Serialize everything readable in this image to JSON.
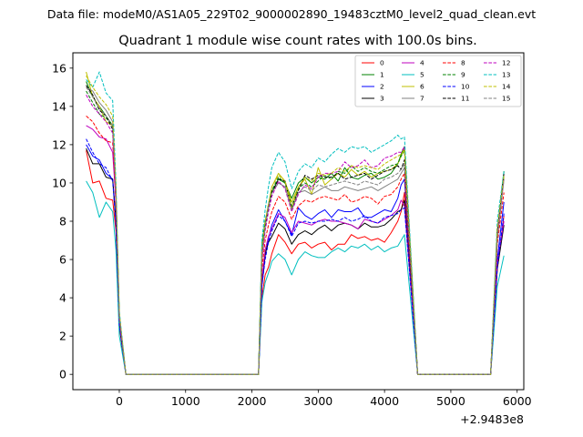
{
  "figure": {
    "suptitle": "Data file: modeM0/AS1A05_229T02_9000002890_19483cztM0_level2_quad_clean.evt"
  },
  "chart_data": {
    "type": "line",
    "title": "Quadrant 1 module wise count rates with 100.0s bins.",
    "xlabel": "",
    "ylabel": "",
    "x_offset_label": "+2.9483e8",
    "xlim": [
      -700,
      6100
    ],
    "ylim": [
      -0.8,
      16.8
    ],
    "x_ticks": [
      0,
      1000,
      2000,
      3000,
      4000,
      5000,
      6000
    ],
    "x_tick_labels": [
      "0",
      "1000",
      "2000",
      "3000",
      "4000",
      "5000",
      "6000"
    ],
    "y_ticks": [
      0,
      2,
      4,
      6,
      8,
      10,
      12,
      14,
      16
    ],
    "y_tick_labels": [
      "0",
      "2",
      "4",
      "6",
      "8",
      "10",
      "12",
      "14",
      "16"
    ],
    "grid": false,
    "legend_placement": "top-right",
    "legend_columns": 4,
    "x": [
      -500,
      -400,
      -300,
      -200,
      -100,
      -50,
      0,
      100,
      2000,
      2100,
      2150,
      2200,
      2250,
      2300,
      2400,
      2500,
      2600,
      2700,
      2800,
      2900,
      3000,
      3100,
      3200,
      3300,
      3400,
      3500,
      3600,
      3700,
      3800,
      3900,
      4000,
      4100,
      4200,
      4250,
      4300,
      4500,
      5600,
      5700,
      5800
    ],
    "series": [
      {
        "name": "0",
        "color": "#ff0000",
        "dash": "solid",
        "values": [
          11.7,
          10.0,
          10.1,
          9.2,
          9.1,
          7.5,
          2.5,
          0,
          0,
          0,
          4.0,
          5.2,
          5.6,
          6.3,
          7.3,
          6.9,
          6.3,
          6.8,
          6.9,
          6.6,
          6.8,
          6.9,
          6.5,
          6.8,
          6.8,
          7.3,
          7.1,
          7.2,
          7.0,
          7.1,
          6.9,
          7.4,
          8.0,
          8.5,
          9.5,
          0,
          0,
          5.5,
          8.3
        ]
      },
      {
        "name": "1",
        "color": "#008000",
        "dash": "solid",
        "values": [
          15.3,
          14.5,
          14.0,
          13.5,
          13.0,
          9.0,
          3.0,
          0,
          0,
          0,
          6.8,
          8.0,
          8.8,
          9.5,
          10.2,
          10.0,
          9.2,
          10.0,
          10.3,
          10.0,
          10.3,
          10.2,
          10.5,
          10.1,
          10.8,
          10.3,
          10.2,
          10.4,
          10.5,
          10.2,
          10.3,
          10.5,
          11.0,
          11.5,
          11.9,
          0,
          0,
          7.2,
          10.6
        ]
      },
      {
        "name": "2",
        "color": "#0000ff",
        "dash": "solid",
        "values": [
          12.0,
          11.4,
          11.2,
          10.5,
          10.2,
          8.0,
          2.7,
          0,
          0,
          0,
          4.6,
          6.2,
          7.1,
          7.8,
          8.6,
          8.0,
          7.3,
          8.7,
          8.3,
          8.1,
          8.4,
          8.6,
          8.2,
          8.6,
          8.5,
          8.5,
          8.7,
          8.2,
          8.2,
          8.4,
          8.6,
          8.5,
          9.2,
          9.9,
          10.2,
          0,
          0,
          6.0,
          9.0
        ]
      },
      {
        "name": "3",
        "color": "#000000",
        "dash": "solid",
        "values": [
          11.8,
          11.0,
          11.0,
          10.3,
          10.2,
          8.0,
          2.6,
          0,
          0,
          0,
          4.8,
          6.3,
          6.9,
          7.2,
          7.9,
          7.6,
          6.8,
          7.3,
          7.5,
          7.3,
          7.6,
          7.8,
          7.5,
          7.8,
          7.9,
          7.8,
          7.6,
          7.9,
          7.7,
          7.7,
          7.8,
          8.1,
          8.5,
          8.6,
          9.1,
          0,
          0,
          5.5,
          7.8
        ]
      },
      {
        "name": "4",
        "color": "#bf00bf",
        "dash": "solid",
        "values": [
          13.0,
          12.8,
          12.4,
          12.3,
          11.6,
          9.0,
          3.0,
          0,
          0,
          0,
          5.0,
          6.5,
          7.2,
          7.6,
          8.4,
          8.2,
          7.4,
          8.0,
          7.9,
          7.8,
          8.0,
          8.1,
          8.0,
          8.0,
          7.9,
          7.8,
          7.6,
          8.1,
          8.0,
          7.9,
          8.1,
          8.3,
          8.6,
          9.1,
          8.8,
          0,
          0,
          5.8,
          8.0
        ]
      },
      {
        "name": "5",
        "color": "#00bfbf",
        "dash": "solid",
        "values": [
          10.1,
          9.5,
          8.2,
          9.0,
          8.5,
          6.5,
          2.0,
          0,
          0,
          0,
          3.8,
          4.8,
          5.3,
          5.9,
          6.3,
          6.0,
          5.2,
          6.0,
          6.4,
          6.2,
          6.1,
          6.1,
          6.4,
          6.6,
          6.4,
          6.7,
          6.6,
          6.8,
          6.5,
          6.7,
          6.4,
          6.6,
          6.7,
          7.0,
          7.3,
          0,
          0,
          4.6,
          6.2
        ]
      },
      {
        "name": "6",
        "color": "#bfbf00",
        "dash": "solid",
        "values": [
          15.8,
          14.5,
          14.0,
          13.2,
          13.0,
          9.5,
          3.1,
          0,
          0,
          0,
          6.5,
          7.8,
          8.8,
          9.8,
          10.5,
          10.1,
          9.0,
          9.8,
          10.2,
          9.4,
          10.8,
          9.9,
          10.2,
          10.5,
          10.3,
          10.7,
          10.4,
          10.6,
          10.3,
          10.5,
          10.6,
          10.7,
          11.0,
          11.4,
          11.8,
          0,
          0,
          7.5,
          10.3
        ]
      },
      {
        "name": "7",
        "color": "#808080",
        "dash": "solid",
        "values": [
          15.0,
          14.8,
          14.2,
          13.8,
          13.2,
          9.5,
          3.0,
          0,
          0,
          0,
          6.0,
          7.7,
          8.7,
          9.5,
          10.0,
          9.8,
          8.6,
          9.5,
          9.6,
          9.4,
          9.6,
          9.8,
          9.6,
          9.6,
          9.8,
          9.7,
          9.6,
          9.7,
          9.8,
          9.6,
          9.8,
          10.0,
          10.2,
          10.5,
          10.8,
          0,
          0,
          7.0,
          10.2
        ]
      },
      {
        "name": "8",
        "color": "#ff0000",
        "dash": "dashed",
        "values": [
          13.5,
          13.2,
          12.6,
          12.2,
          12.1,
          9.0,
          2.9,
          0,
          0,
          0,
          5.5,
          7.0,
          7.8,
          8.5,
          9.3,
          9.0,
          8.1,
          8.8,
          9.1,
          9.0,
          9.2,
          9.3,
          9.2,
          9.1,
          9.4,
          9.0,
          9.1,
          9.3,
          9.2,
          8.9,
          9.3,
          9.4,
          9.8,
          10.2,
          10.5,
          0,
          0,
          6.8,
          9.5
        ]
      },
      {
        "name": "9",
        "color": "#008000",
        "dash": "dashed",
        "values": [
          14.8,
          14.2,
          13.6,
          13.4,
          13.0,
          9.5,
          3.0,
          0,
          0,
          0,
          6.4,
          7.9,
          8.9,
          9.6,
          10.3,
          10.0,
          8.8,
          9.7,
          10.0,
          9.8,
          10.1,
          10.4,
          10.2,
          10.6,
          10.5,
          10.9,
          10.6,
          10.8,
          10.6,
          10.5,
          10.7,
          10.9,
          11.0,
          11.4,
          11.7,
          0,
          0,
          7.4,
          10.6
        ]
      },
      {
        "name": "10",
        "color": "#0000ff",
        "dash": "dashed",
        "values": [
          12.3,
          11.6,
          11.0,
          10.8,
          10.1,
          7.8,
          2.6,
          0,
          0,
          0,
          4.6,
          6.0,
          6.9,
          7.5,
          8.3,
          8.0,
          7.2,
          7.9,
          8.0,
          7.9,
          8.0,
          8.0,
          8.1,
          8.0,
          8.2,
          8.0,
          8.1,
          8.3,
          8.0,
          7.9,
          8.2,
          8.3,
          8.4,
          8.6,
          8.7,
          0,
          0,
          5.6,
          8.4
        ]
      },
      {
        "name": "11",
        "color": "#000000",
        "dash": "dashed",
        "values": [
          15.1,
          14.6,
          13.8,
          13.5,
          12.8,
          9.4,
          3.0,
          0,
          0,
          0,
          6.4,
          7.8,
          8.8,
          9.5,
          10.2,
          10.1,
          8.7,
          9.6,
          10.4,
          10.2,
          10.4,
          10.3,
          10.3,
          10.5,
          10.2,
          10.3,
          10.4,
          10.5,
          10.2,
          10.4,
          10.6,
          10.7,
          10.9,
          10.7,
          11.2,
          0,
          0,
          7.4,
          10.5
        ]
      },
      {
        "name": "12",
        "color": "#bf00bf",
        "dash": "dashed",
        "values": [
          14.6,
          14.0,
          13.6,
          13.2,
          12.6,
          9.0,
          2.9,
          0,
          0,
          0,
          6.0,
          7.5,
          8.5,
          9.3,
          10.1,
          9.7,
          8.5,
          9.4,
          9.9,
          9.7,
          10.3,
          10.5,
          10.5,
          10.6,
          11.1,
          10.8,
          10.9,
          11.2,
          10.8,
          10.9,
          11.3,
          11.4,
          11.6,
          11.6,
          11.9,
          0,
          0,
          7.3,
          10.4
        ]
      },
      {
        "name": "13",
        "color": "#00bfbf",
        "dash": "dashed",
        "values": [
          15.4,
          15.0,
          15.8,
          14.7,
          14.3,
          10.0,
          3.3,
          0,
          0,
          0,
          7.0,
          8.6,
          9.8,
          10.8,
          11.6,
          11.1,
          9.7,
          10.6,
          11.0,
          10.8,
          11.3,
          11.1,
          11.5,
          11.8,
          11.6,
          11.9,
          11.8,
          11.9,
          11.6,
          11.8,
          12.0,
          12.2,
          12.5,
          12.3,
          12.4,
          0,
          0,
          8.0,
          10.6
        ]
      },
      {
        "name": "14",
        "color": "#bfbf00",
        "dash": "dashed",
        "values": [
          15.6,
          15.0,
          14.5,
          14.1,
          13.5,
          9.8,
          3.2,
          0,
          0,
          0,
          6.5,
          8.0,
          8.9,
          9.8,
          10.4,
          10.1,
          8.7,
          9.8,
          10.3,
          10.1,
          10.5,
          10.4,
          10.5,
          10.8,
          10.6,
          10.9,
          10.8,
          10.9,
          10.8,
          10.7,
          11.0,
          11.2,
          11.4,
          11.5,
          11.7,
          0,
          0,
          7.6,
          10.4
        ]
      },
      {
        "name": "15",
        "color": "#808080",
        "dash": "dashed",
        "values": [
          15.0,
          14.5,
          13.9,
          13.5,
          13.0,
          9.4,
          3.0,
          0,
          0,
          0,
          6.3,
          7.7,
          8.8,
          9.5,
          10.0,
          9.8,
          8.6,
          9.5,
          9.8,
          9.6,
          9.9,
          9.8,
          9.9,
          10.0,
          10.1,
          10.0,
          9.9,
          10.1,
          10.0,
          9.9,
          10.2,
          10.3,
          10.5,
          10.7,
          11.0,
          0,
          0,
          7.1,
          10.2
        ]
      }
    ]
  }
}
